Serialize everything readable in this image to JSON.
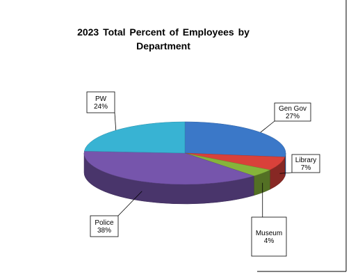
{
  "chart_data": {
    "type": "pie",
    "title": "2023  Total Percent  of Employees  by Department",
    "slices": [
      {
        "name": "Gen  Gov",
        "value": 27,
        "label": "27%",
        "color": "#3b78c8"
      },
      {
        "name": "Library",
        "value": 7,
        "label": "7%",
        "color": "#d9413a"
      },
      {
        "name": "Museum",
        "value": 4,
        "label": "4%",
        "color": "#86b43a"
      },
      {
        "name": "Police",
        "value": 38,
        "label": "38%",
        "color": "#7655ac"
      },
      {
        "name": "PW",
        "value": 24,
        "label": "24%",
        "color": "#38b3d3"
      }
    ],
    "legend": "none",
    "style": "3d"
  }
}
